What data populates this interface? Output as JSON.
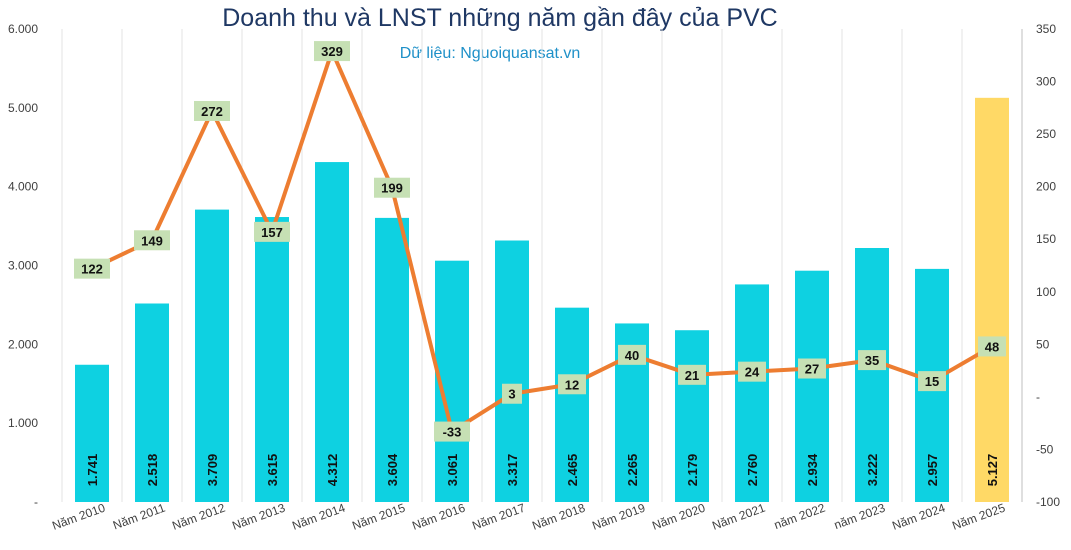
{
  "chart_data": {
    "type": "bar",
    "title": "Doanh thu và LNST những năm gần đây của PVC",
    "subtitle": "Dữ liệu: Nguoiquansat.vn",
    "categories": [
      "Năm 2010",
      "Năm 2011",
      "Năm 2012",
      "Năm 2013",
      "Năm 2014",
      "Năm 2015",
      "Năm 2016",
      "Năm 2017",
      "Năm 2018",
      "Năm 2019",
      "Năm 2020",
      "Năm 2021",
      "năm 2022",
      "năm 2023",
      "Năm 2024",
      "Năm 2025"
    ],
    "bar_series": {
      "values": [
        1741,
        2518,
        3709,
        3615,
        4312,
        3604,
        3061,
        3317,
        2465,
        2265,
        2179,
        2760,
        2934,
        3222,
        2957,
        5127
      ],
      "labels": [
        "1.741",
        "2.518",
        "3.709",
        "3.615",
        "4.312",
        "3.604",
        "3.061",
        "3.317",
        "2.465",
        "2.265",
        "2.179",
        "2.760",
        "2.934",
        "3.222",
        "2.957",
        "5.127"
      ],
      "color": "#0ed1e1",
      "highlight_color": "#ffd966",
      "highlight_index": 15
    },
    "line_series": {
      "values": [
        122,
        149,
        272,
        157,
        329,
        199,
        -33,
        3,
        12,
        40,
        21,
        24,
        27,
        35,
        15,
        48
      ],
      "color": "#ed7d31",
      "label_bg": "#c6e0b4"
    },
    "y_left": {
      "min": 0,
      "max": 6000,
      "ticks": [
        0,
        1000,
        2000,
        3000,
        4000,
        5000,
        6000
      ],
      "tick_labels": [
        "-",
        "1.000",
        "2.000",
        "3.000",
        "4.000",
        "5.000",
        "6.000"
      ]
    },
    "y_right": {
      "min": -100,
      "max": 350,
      "ticks": [
        -100,
        -50,
        0,
        50,
        100,
        150,
        200,
        250,
        300,
        350
      ],
      "tick_labels": [
        "-100",
        "-50",
        "-",
        "50",
        "100",
        "150",
        "200",
        "250",
        "300",
        "350"
      ]
    },
    "grid": true
  }
}
